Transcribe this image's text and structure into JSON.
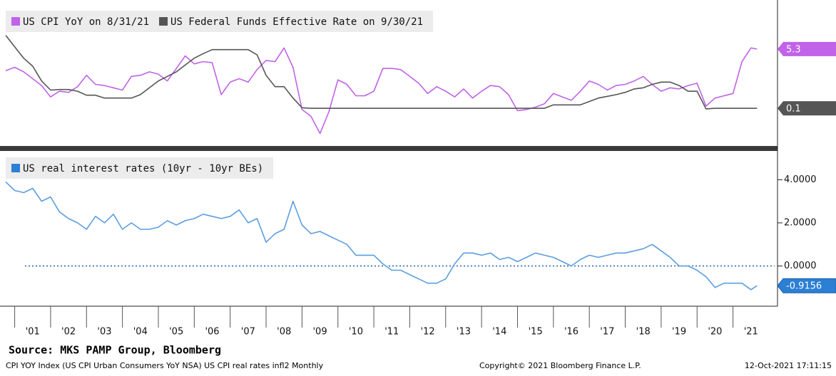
{
  "chart_data": [
    {
      "type": "line",
      "x": [
        2000.75,
        2001,
        2001.25,
        2001.5,
        2001.75,
        2002,
        2002.25,
        2002.5,
        2002.75,
        2003,
        2003.25,
        2003.5,
        2003.75,
        2004,
        2004.25,
        2004.5,
        2004.75,
        2005,
        2005.25,
        2005.5,
        2005.75,
        2006,
        2006.25,
        2006.5,
        2006.75,
        2007,
        2007.25,
        2007.5,
        2007.75,
        2008,
        2008.25,
        2008.5,
        2008.75,
        2009,
        2009.25,
        2009.5,
        2009.75,
        2010,
        2010.25,
        2010.5,
        2010.75,
        2011,
        2011.25,
        2011.5,
        2011.75,
        2012,
        2012.25,
        2012.5,
        2012.75,
        2013,
        2013.25,
        2013.5,
        2013.75,
        2014,
        2014.25,
        2014.5,
        2014.75,
        2015,
        2015.25,
        2015.5,
        2015.75,
        2016,
        2016.25,
        2016.5,
        2016.75,
        2017,
        2017.25,
        2017.5,
        2017.75,
        2018,
        2018.25,
        2018.5,
        2018.75,
        2019,
        2019.25,
        2019.5,
        2019.75,
        2020,
        2020.25,
        2020.5,
        2020.75,
        2021,
        2021.25,
        2021.5,
        2021.67
      ],
      "xlim": [
        2000.75,
        2022.2
      ],
      "ylim": [
        -3.2,
        9.6
      ],
      "legend": "top-left",
      "series": [
        {
          "name": "US CPI YoY on 8/31/21",
          "color": "#c063e8",
          "values": [
            3.4,
            3.7,
            3.3,
            2.7,
            2.1,
            1.1,
            1.6,
            1.5,
            2.0,
            3.0,
            2.2,
            2.1,
            1.9,
            1.7,
            2.9,
            3.0,
            3.3,
            3.1,
            2.5,
            3.6,
            4.7,
            4.0,
            4.2,
            4.1,
            1.3,
            2.4,
            2.7,
            2.4,
            3.5,
            4.3,
            4.2,
            5.4,
            3.7,
            0.0,
            -0.6,
            -2.1,
            -0.2,
            2.6,
            2.2,
            1.2,
            1.2,
            1.6,
            3.6,
            3.6,
            3.5,
            2.9,
            2.3,
            1.4,
            2.0,
            1.6,
            1.1,
            1.8,
            1.0,
            1.6,
            2.1,
            2.0,
            1.3,
            -0.1,
            0.0,
            0.2,
            0.5,
            1.4,
            1.1,
            0.8,
            1.6,
            2.5,
            2.2,
            1.7,
            2.1,
            2.2,
            2.5,
            2.9,
            2.2,
            1.6,
            1.9,
            1.8,
            2.1,
            2.3,
            0.3,
            1.0,
            1.2,
            1.4,
            4.2,
            5.4,
            5.3
          ]
        },
        {
          "name": "US Federal Funds Effective Rate on 9/30/21",
          "color": "#555555",
          "values": [
            6.5,
            5.5,
            4.5,
            3.8,
            2.5,
            1.7,
            1.75,
            1.75,
            1.6,
            1.25,
            1.25,
            1.0,
            1.0,
            1.0,
            1.0,
            1.3,
            1.9,
            2.5,
            2.9,
            3.3,
            3.9,
            4.5,
            4.9,
            5.25,
            5.25,
            5.25,
            5.25,
            5.25,
            4.8,
            3.0,
            2.0,
            2.0,
            1.0,
            0.15,
            0.1,
            0.1,
            0.1,
            0.1,
            0.1,
            0.1,
            0.1,
            0.1,
            0.1,
            0.1,
            0.1,
            0.1,
            0.1,
            0.1,
            0.1,
            0.1,
            0.1,
            0.1,
            0.1,
            0.1,
            0.1,
            0.1,
            0.1,
            0.1,
            0.1,
            0.1,
            0.1,
            0.4,
            0.4,
            0.4,
            0.4,
            0.7,
            1.0,
            1.15,
            1.3,
            1.5,
            1.8,
            1.9,
            2.2,
            2.4,
            2.4,
            2.1,
            1.6,
            1.6,
            0.05,
            0.1,
            0.1,
            0.1,
            0.1,
            0.1,
            0.1
          ]
        }
      ]
    },
    {
      "type": "line",
      "x": [
        2000.75,
        2001,
        2001.25,
        2001.5,
        2001.75,
        2002,
        2002.25,
        2002.5,
        2002.75,
        2003,
        2003.25,
        2003.5,
        2003.75,
        2004,
        2004.25,
        2004.5,
        2004.75,
        2005,
        2005.25,
        2005.5,
        2005.75,
        2006,
        2006.25,
        2006.5,
        2006.75,
        2007,
        2007.25,
        2007.5,
        2007.75,
        2008,
        2008.25,
        2008.5,
        2008.75,
        2009,
        2009.25,
        2009.5,
        2009.75,
        2010,
        2010.25,
        2010.5,
        2010.75,
        2011,
        2011.25,
        2011.5,
        2011.75,
        2012,
        2012.25,
        2012.5,
        2012.75,
        2013,
        2013.25,
        2013.5,
        2013.75,
        2014,
        2014.25,
        2014.5,
        2014.75,
        2015,
        2015.25,
        2015.5,
        2015.75,
        2016,
        2016.25,
        2016.5,
        2016.75,
        2017,
        2017.25,
        2017.5,
        2017.75,
        2018,
        2018.25,
        2018.5,
        2018.75,
        2019,
        2019.25,
        2019.5,
        2019.75,
        2020,
        2020.25,
        2020.5,
        2020.75,
        2021,
        2021.25,
        2021.5,
        2021.67
      ],
      "xlim": [
        2000.75,
        2022.2
      ],
      "xticks": [
        {
          "value": 2001,
          "label": "'01"
        },
        {
          "value": 2002,
          "label": "'02"
        },
        {
          "value": 2003,
          "label": "'03"
        },
        {
          "value": 2004,
          "label": "'04"
        },
        {
          "value": 2005,
          "label": "'05"
        },
        {
          "value": 2006,
          "label": "'06"
        },
        {
          "value": 2007,
          "label": "'07"
        },
        {
          "value": 2008,
          "label": "'08"
        },
        {
          "value": 2009,
          "label": "'09"
        },
        {
          "value": 2010,
          "label": "'10"
        },
        {
          "value": 2011,
          "label": "'11"
        },
        {
          "value": 2012,
          "label": "'12"
        },
        {
          "value": 2013,
          "label": "'13"
        },
        {
          "value": 2014,
          "label": "'14"
        },
        {
          "value": 2015,
          "label": "'15"
        },
        {
          "value": 2016,
          "label": "'16"
        },
        {
          "value": 2017,
          "label": "'17"
        },
        {
          "value": 2018,
          "label": "'18"
        },
        {
          "value": 2019,
          "label": "'19"
        },
        {
          "value": 2020,
          "label": "'20"
        },
        {
          "value": 2021,
          "label": "'21"
        }
      ],
      "ylim": [
        -1.8,
        5.3
      ],
      "yticks": [
        {
          "value": 4,
          "label": "4.0000"
        },
        {
          "value": 2,
          "label": "2.0000"
        },
        {
          "value": 0,
          "label": "0.0000"
        }
      ],
      "hline": 0,
      "legend": "top-left",
      "series": [
        {
          "name": "US real interest rates (10yr - 10yr BEs)",
          "color": "#5b9ee0",
          "legend_color": "#2b7fd4",
          "values": [
            3.9,
            3.5,
            3.4,
            3.6,
            3.0,
            3.2,
            2.5,
            2.2,
            2.0,
            1.7,
            2.3,
            2.0,
            2.4,
            1.7,
            2.0,
            1.7,
            1.7,
            1.8,
            2.1,
            1.9,
            2.1,
            2.2,
            2.4,
            2.3,
            2.2,
            2.3,
            2.6,
            2.0,
            2.2,
            1.1,
            1.5,
            1.7,
            3.0,
            1.9,
            1.5,
            1.6,
            1.4,
            1.2,
            1.0,
            0.5,
            0.5,
            0.5,
            0.1,
            -0.2,
            -0.2,
            -0.4,
            -0.6,
            -0.8,
            -0.8,
            -0.6,
            0.1,
            0.6,
            0.6,
            0.5,
            0.6,
            0.3,
            0.4,
            0.2,
            0.4,
            0.6,
            0.5,
            0.4,
            0.2,
            0.0,
            0.3,
            0.5,
            0.4,
            0.5,
            0.6,
            0.6,
            0.7,
            0.8,
            1.0,
            0.7,
            0.4,
            0.0,
            0.0,
            -0.2,
            -0.5,
            -1.0,
            -0.8,
            -0.8,
            -0.8,
            -1.1,
            -0.9156
          ]
        }
      ]
    }
  ],
  "footer": {
    "source": "Source: MKS PAMP Group, Bloomberg",
    "description": "CPI YOY Index (US CPI Urban Consumers YoY NSA) US CPI real rates infl2  Monthly",
    "copyright": "Copyright© 2021 Bloomberg Finance L.P.",
    "timestamp": "12-Oct-2021 17:11:15"
  }
}
